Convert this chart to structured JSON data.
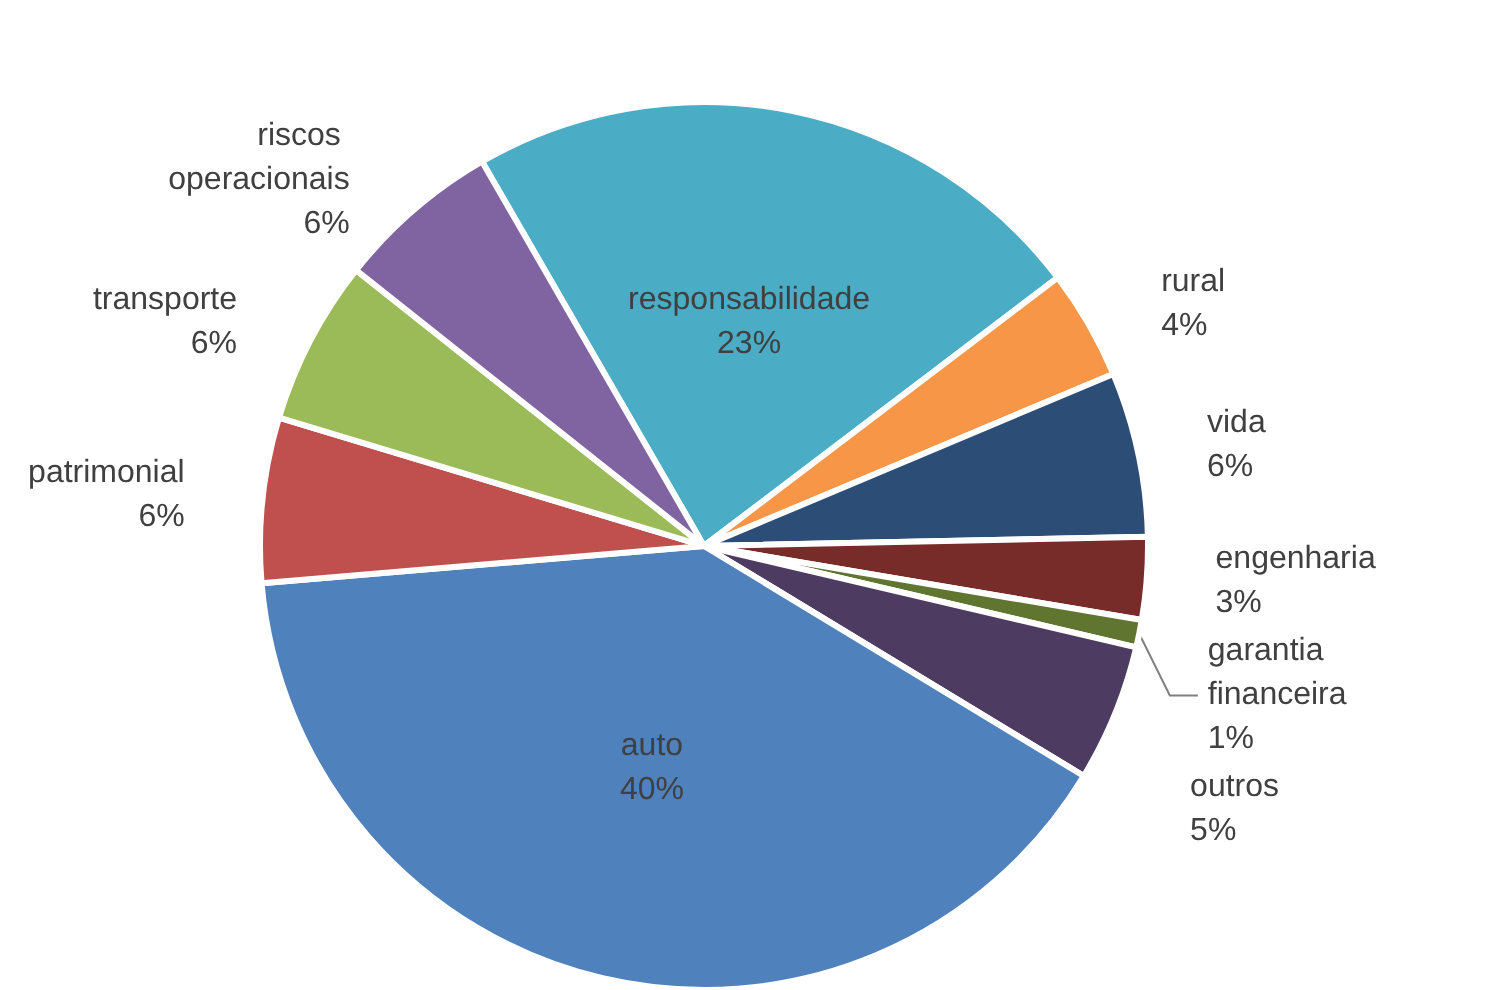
{
  "chart_data": {
    "type": "pie",
    "categories": [
      "responsabilidade",
      "rural",
      "vida",
      "engenharia",
      "garantia financeira",
      "outros",
      "auto",
      "patrimonial",
      "transporte",
      "riscos operacionais"
    ],
    "values": [
      23,
      4,
      6,
      3,
      1,
      5,
      40,
      6,
      6,
      6
    ],
    "value_labels": [
      "23%",
      "4%",
      "6%",
      "3%",
      "1%",
      "5%",
      "40%",
      "6%",
      "6%",
      "6%"
    ],
    "colors": [
      "#4bacc6",
      "#f79646",
      "#2c4d75",
      "#772c2a",
      "#5f7530",
      "#4d3b62",
      "#4f81bd",
      "#c0504d",
      "#9bbb59",
      "#8064a2"
    ],
    "legend": false
  }
}
